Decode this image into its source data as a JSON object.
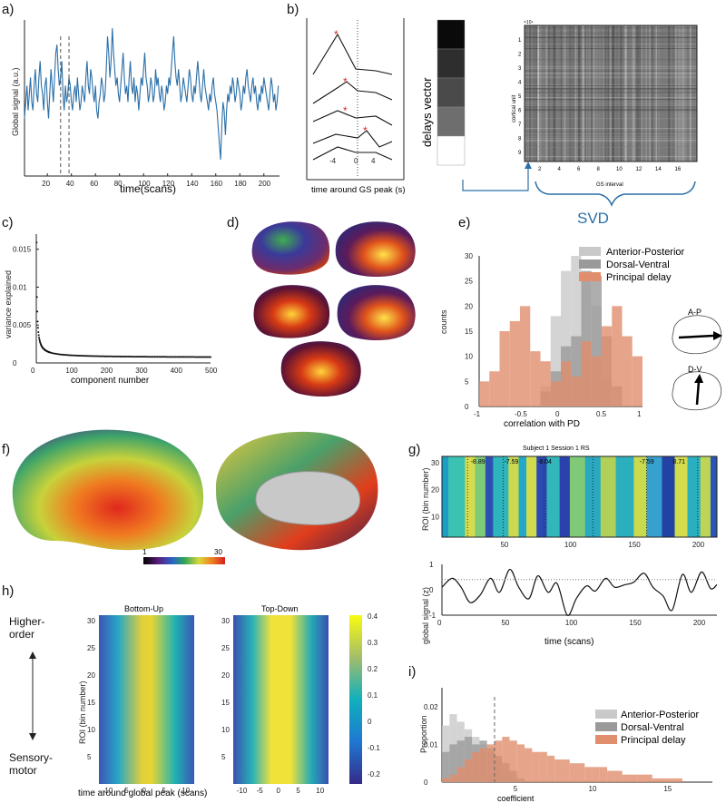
{
  "panels": {
    "a": {
      "label": "a)",
      "ylabel": "Global signal (a.u.)",
      "xlabel": "time(scans)",
      "xticks": [
        "20",
        "40",
        "60",
        "80",
        "100",
        "120",
        "140",
        "160",
        "180",
        "200"
      ]
    },
    "b": {
      "label": "b)",
      "ylabel_vector": "delays vector",
      "xlabel": "time around GS peak (s)",
      "xticks": [
        "-4",
        "0",
        "4"
      ],
      "gs_interval_label": "GS interval",
      "cortical_label": "cortical unit",
      "exponent": "×10⁴",
      "heat_xticks": [
        "2",
        "4",
        "6",
        "8",
        "10",
        "12",
        "14",
        "16"
      ],
      "heat_yticks": [
        "1",
        "2",
        "3",
        "4",
        "5",
        "6",
        "7",
        "8",
        "9"
      ],
      "svd_label": "SVD"
    },
    "c": {
      "label": "c)",
      "ylabel": "variance explained",
      "xlabel": "component number",
      "yticks": [
        "0",
        "0.005",
        "0.01",
        "0.015"
      ],
      "xticks": [
        "0",
        "100",
        "200",
        "300",
        "400",
        "500"
      ]
    },
    "d": {
      "label": "d)"
    },
    "e": {
      "label": "e)",
      "ylabel": "counts",
      "xlabel": "correlation with PD",
      "yticks": [
        "0",
        "5",
        "10",
        "15",
        "20",
        "25",
        "30"
      ],
      "xticks": [
        "-1",
        "-0.5",
        "0",
        "0.5",
        "1"
      ],
      "legend": [
        "Anterior-Posterior",
        "Dorsal-Ventral",
        "Principal delay"
      ],
      "inset_ap": "A-P",
      "inset_dv": "D-V"
    },
    "f": {
      "label": "f)",
      "colorbar_min": "1",
      "colorbar_max": "30"
    },
    "g": {
      "label": "g)",
      "title": "Subject 1 Session 1 RS",
      "ylabel_top": "ROI (bin number)",
      "ylabel_bottom": "global signal (z)",
      "xlabel": "time (scans)",
      "top_yticks": [
        "10",
        "20",
        "30"
      ],
      "bottom_yticks": [
        "-1",
        "0",
        "1"
      ],
      "xticks": [
        "0",
        "50",
        "100",
        "150",
        "200"
      ],
      "annotations": [
        "-8.89",
        "-7.59",
        "-8.04",
        "-7.59",
        "8.71"
      ]
    },
    "h": {
      "label": "h)",
      "higher": "Higher-\norder",
      "sensory": "Sensory-\nmotor",
      "ylabel": "ROI (bin number)",
      "xlabel": "time around global peak (scans)",
      "title_left": "Bottom-Up",
      "title_right": "Top-Down",
      "yticks": [
        "5",
        "10",
        "15",
        "20",
        "25",
        "30"
      ],
      "xticks": [
        "-10",
        "-5",
        "0",
        "5",
        "10"
      ],
      "cbar_ticks": [
        "0.4",
        "0.3",
        "0.2",
        "0.1",
        "0",
        "-0.1",
        "-0.2"
      ]
    },
    "i": {
      "label": "i)",
      "ylabel": "Proportion",
      "xlabel": "coefficient",
      "yticks": [
        "0",
        "0.01",
        "0.02"
      ],
      "xticks": [
        "5",
        "10",
        "15"
      ],
      "legend": [
        "Anterior-Posterior",
        "Dorsal-Ventral",
        "Principal delay"
      ]
    }
  },
  "colors": {
    "signal": "#2b6fa8",
    "pd": "#e08e6d",
    "ap": "#c9c9c9",
    "dv": "#9a9a9a",
    "svd": "#2b6fa8",
    "star": "#d62728"
  },
  "chart_data": [
    {
      "id": "a",
      "type": "line",
      "title": "",
      "xlabel": "time(scans)",
      "ylabel": "Global signal (a.u.)",
      "xlim": [
        1,
        213
      ],
      "values": [
        0.1,
        0.3,
        0.5,
        0.2,
        0.4,
        0.6,
        0.3,
        0.2,
        0.5,
        0.7,
        0.4,
        0.3,
        0.6,
        0.8,
        0.5,
        0.4,
        0.2,
        0.5,
        0.6,
        0.3,
        0.1,
        0.4,
        0.7,
        0.5,
        0.3,
        0.6,
        0.9,
        1.0,
        0.7,
        0.5,
        0.6,
        0.8,
        0.4,
        0.2,
        0.5,
        0.3,
        0.4,
        0.6,
        0.5,
        0.3,
        0.2,
        0.4,
        0.5,
        0.3,
        0.6,
        0.4,
        0.2,
        0.3,
        0.5,
        0.4,
        0.3,
        0.6,
        0.8,
        0.5,
        0.4,
        0.7,
        0.6,
        0.4,
        0.3,
        0.5,
        0.2,
        0.1,
        0.3,
        0.4,
        0.6,
        0.5,
        0.3,
        0.4,
        0.7,
        1.1,
        0.9,
        0.6,
        0.8,
        1.2,
        0.9,
        0.7,
        0.5,
        0.6,
        0.4,
        0.3,
        0.5,
        0.7,
        0.9,
        0.6,
        0.4,
        0.5,
        0.3,
        0.6,
        0.8,
        0.5,
        0.4,
        0.6,
        0.3,
        0.5,
        0.4,
        0.2,
        0.4,
        0.6,
        0.5,
        0.7,
        0.9,
        0.6,
        0.5,
        0.3,
        0.4,
        0.6,
        0.5,
        0.3,
        0.4,
        0.7,
        0.5,
        0.6,
        0.4,
        0.3,
        0.5,
        0.4,
        0.2,
        0.3,
        0.5,
        0.4,
        0.6,
        0.5,
        0.7,
        0.9,
        1.1,
        0.8,
        0.6,
        0.5,
        0.7,
        0.5,
        0.3,
        0.4,
        0.6,
        0.5,
        0.4,
        0.3,
        0.5,
        0.7,
        0.6,
        0.4,
        0.3,
        0.5,
        0.4,
        0.6,
        0.8,
        0.6,
        0.4,
        0.3,
        0.5,
        0.7,
        0.5,
        0.4,
        0.3,
        0.2,
        0.4,
        0.3,
        0.5,
        0.6,
        0.4,
        0.3,
        0.2,
        0.0,
        -0.2,
        -0.4,
        0.0,
        0.3,
        0.2,
        -0.1,
        0.2,
        0.4,
        0.3,
        0.5,
        0.4,
        0.6,
        0.5,
        0.3,
        0.4,
        0.6,
        0.5,
        0.4,
        0.2,
        0.3,
        0.5,
        0.4,
        0.6,
        0.7,
        0.5,
        0.4,
        0.3,
        0.5,
        0.6,
        0.4,
        0.5,
        0.3,
        0.2,
        0.4,
        0.3,
        0.5,
        0.4,
        0.6,
        0.5,
        0.4,
        0.3,
        0.2,
        0.4,
        0.6,
        0.5,
        0.3,
        0.4,
        0.2,
        0.3,
        0.5
      ],
      "vlines": [
        31,
        38
      ]
    },
    {
      "id": "c",
      "type": "scatter",
      "xlabel": "component number",
      "ylabel": "variance explained",
      "xlim": [
        0,
        500
      ],
      "ylim": [
        0,
        0.017
      ],
      "decay": {
        "a": 0.0158,
        "floor": 0.0007
      }
    },
    {
      "id": "e",
      "type": "bar",
      "xlabel": "correlation with PD",
      "ylabel": "counts",
      "xlim": [
        -1,
        1
      ],
      "ylim": [
        0,
        30
      ],
      "bin_edges": [
        -1,
        -0.875,
        -0.75,
        -0.625,
        -0.5,
        -0.375,
        -0.25,
        -0.125,
        0,
        0.125,
        0.25,
        0.375,
        0.5,
        0.625,
        0.75,
        0.875,
        1
      ],
      "series": [
        {
          "name": "Anterior-Posterior",
          "values": [
            0,
            0,
            0,
            0,
            0,
            0,
            4,
            18,
            27,
            30,
            26,
            20,
            5,
            0,
            0,
            0
          ]
        },
        {
          "name": "Dorsal-Ventral",
          "values": [
            0,
            0,
            0,
            0,
            0,
            0,
            3,
            7,
            12,
            14,
            27,
            26,
            14,
            4,
            0,
            0
          ]
        },
        {
          "name": "Principal delay",
          "values": [
            5,
            7,
            15,
            17,
            20,
            11,
            9,
            5,
            9,
            6,
            13,
            10,
            16,
            20,
            14,
            10
          ]
        }
      ]
    },
    {
      "id": "i",
      "type": "bar",
      "xlabel": "coefficient",
      "ylabel": "Proportion",
      "xlim": [
        0,
        18
      ],
      "ylim": [
        0,
        0.025
      ],
      "bin_width": 0.5,
      "series": [
        {
          "name": "Anterior-Posterior",
          "values": [
            0.015,
            0.018,
            0.016,
            0.014,
            0.012,
            0.01,
            0.008,
            0.006,
            0.003,
            0.001,
            0,
            0,
            0,
            0,
            0,
            0,
            0,
            0,
            0,
            0,
            0,
            0,
            0,
            0,
            0,
            0,
            0,
            0,
            0,
            0,
            0,
            0,
            0,
            0,
            0,
            0
          ]
        },
        {
          "name": "Dorsal-Ventral",
          "values": [
            0.008,
            0.01,
            0.011,
            0.012,
            0.01,
            0.011,
            0.009,
            0.007,
            0.005,
            0.003,
            0.001,
            0,
            0,
            0,
            0,
            0,
            0,
            0,
            0,
            0,
            0,
            0,
            0,
            0,
            0,
            0,
            0,
            0,
            0,
            0,
            0,
            0,
            0,
            0,
            0,
            0
          ]
        },
        {
          "name": "Principal delay",
          "values": [
            0.001,
            0.002,
            0.004,
            0.006,
            0.008,
            0.009,
            0.01,
            0.011,
            0.012,
            0.011,
            0.01,
            0.009,
            0.008,
            0.008,
            0.007,
            0.006,
            0.006,
            0.005,
            0.005,
            0.004,
            0.004,
            0.004,
            0.003,
            0.003,
            0.002,
            0.002,
            0.002,
            0.002,
            0.001,
            0.001,
            0.001,
            0.001,
            0,
            0,
            0,
            0
          ]
        }
      ],
      "vline": 3.5
    },
    {
      "id": "g-bottom",
      "type": "line",
      "xlabel": "time (scans)",
      "ylabel": "global signal (z)",
      "xlim": [
        0,
        215
      ],
      "ylim": [
        -1,
        1
      ],
      "x": [
        0,
        8,
        15,
        22,
        30,
        38,
        45,
        53,
        60,
        68,
        75,
        83,
        90,
        98,
        105,
        113,
        120,
        128,
        135,
        143,
        150,
        158,
        165,
        173,
        180,
        188,
        195,
        203,
        210,
        215
      ],
      "values": [
        0.1,
        0.45,
        0.1,
        -0.5,
        -0.2,
        0.45,
        -0.1,
        0.8,
        0.1,
        -0.35,
        0.55,
        -0.1,
        0.25,
        -1.0,
        -0.35,
        0.15,
        -0.05,
        0.45,
        0.1,
        0.2,
        0.3,
        0.65,
        0.1,
        -0.25,
        -0.8,
        0.6,
        -0.1,
        0.7,
        0.05,
        0.2
      ],
      "threshold": 0.4
    }
  ]
}
